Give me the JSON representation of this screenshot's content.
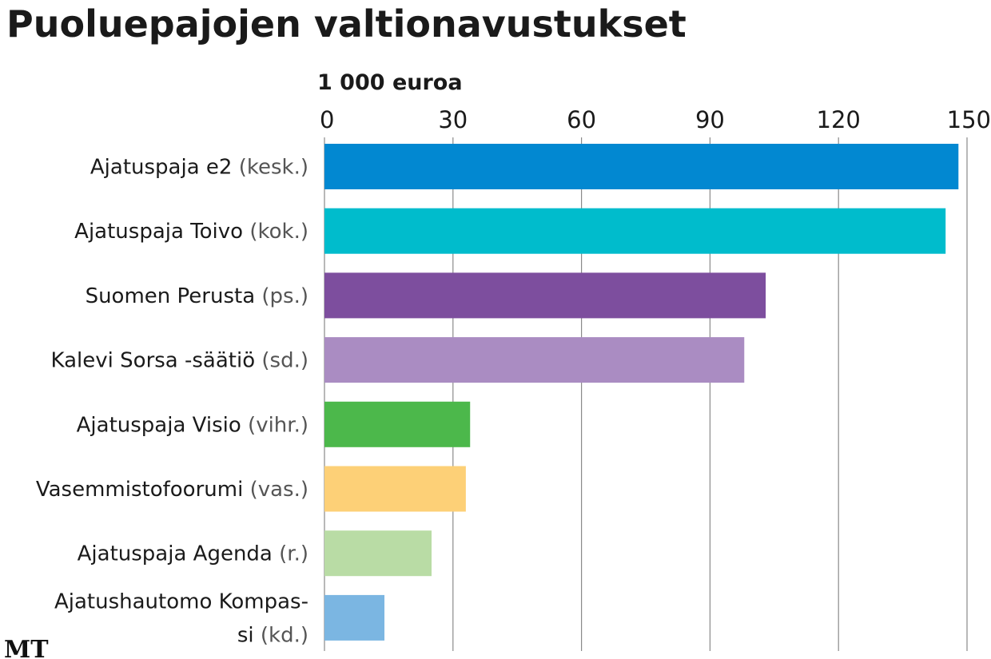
{
  "chart_data": {
    "type": "bar",
    "orientation": "horizontal",
    "title": "Puoluepajojen valtionavustukset",
    "unit_label": "1 000 euroa",
    "xlim": [
      0,
      150
    ],
    "ticks": [
      0,
      30,
      60,
      90,
      120,
      150
    ],
    "grid": true,
    "categories": [
      {
        "lines": [
          "Ajatuspaja e2"
        ],
        "party": "(kesk.)",
        "value": 148,
        "color": "#0288d1"
      },
      {
        "lines": [
          "Ajatuspaja Toivo"
        ],
        "party": "(kok.)",
        "value": 145,
        "color": "#00bccc"
      },
      {
        "lines": [
          "Suomen Perusta"
        ],
        "party": "(ps.)",
        "value": 103,
        "color": "#7d4e9e"
      },
      {
        "lines": [
          "Kalevi Sorsa -säätiö"
        ],
        "party": "(sd.)",
        "value": 98,
        "color": "#aa8cc2"
      },
      {
        "lines": [
          "Ajatuspaja Visio"
        ],
        "party": "(vihr.)",
        "value": 34,
        "color": "#4cb84b"
      },
      {
        "lines": [
          "Vasemmistofoorumi"
        ],
        "party": "(vas.)",
        "value": 33,
        "color": "#fdd077"
      },
      {
        "lines": [
          "Ajatuspaja Agenda"
        ],
        "party": "(r.)",
        "value": 25,
        "color": "#b9dca5"
      },
      {
        "lines": [
          "Ajatushautomo Kompas-",
          "si"
        ],
        "party": "(kd.)",
        "value": 14,
        "color": "#7bb6e2"
      }
    ]
  },
  "branding": {
    "logo_text": "MT"
  }
}
